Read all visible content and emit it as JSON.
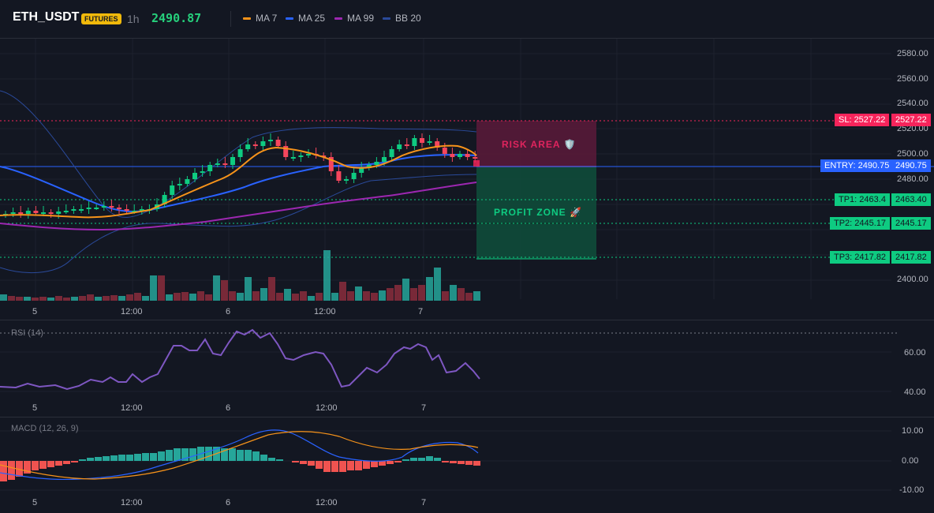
{
  "header": {
    "symbol": "ETH_USDT",
    "badge": "FUTURES",
    "timeframe": "1h",
    "last_price": "2490.87",
    "legend": [
      {
        "label": "MA 7",
        "color": "#f7931a"
      },
      {
        "label": "MA 25",
        "color": "#2962ff"
      },
      {
        "label": "MA 99",
        "color": "#9c27b0"
      },
      {
        "label": "BB 20",
        "color": "#2a4a9a"
      }
    ]
  },
  "price_axis": [
    "2580.00",
    "2560.00",
    "2540.00",
    "2520.00",
    "2500.00",
    "2480.00",
    "2400.00"
  ],
  "levels": {
    "sl": {
      "label": "SL: 2527.22",
      "value": "2527.22",
      "color": "#f7245b"
    },
    "entry": {
      "label": "ENTRY: 2490.75",
      "value": "2490.75",
      "color": "#2962ff"
    },
    "tp1": {
      "label": "TP1: 2463.4",
      "value": "2463.40",
      "color": "#0ecb81"
    },
    "tp2": {
      "label": "TP2: 2445.17",
      "value": "2445.17",
      "color": "#0ecb81"
    },
    "tp3": {
      "label": "TP3: 2417.82",
      "value": "2417.82",
      "color": "#0ecb81"
    }
  },
  "zones": {
    "risk": "RISK AREA 🛡️",
    "profit": "PROFIT ZONE 🚀"
  },
  "time_axis": [
    "5",
    "12:00",
    "6",
    "12:00",
    "7"
  ],
  "rsi": {
    "title": "RSI (14)",
    "axis": [
      "60.00",
      "40.00"
    ]
  },
  "macd": {
    "title": "MACD (12, 26, 9)",
    "axis": [
      "10.00",
      "0.00",
      "-10.00"
    ]
  },
  "colors": {
    "up": "#26a69a",
    "up_candle": "#0ecb81",
    "down": "#f6465d"
  }
}
